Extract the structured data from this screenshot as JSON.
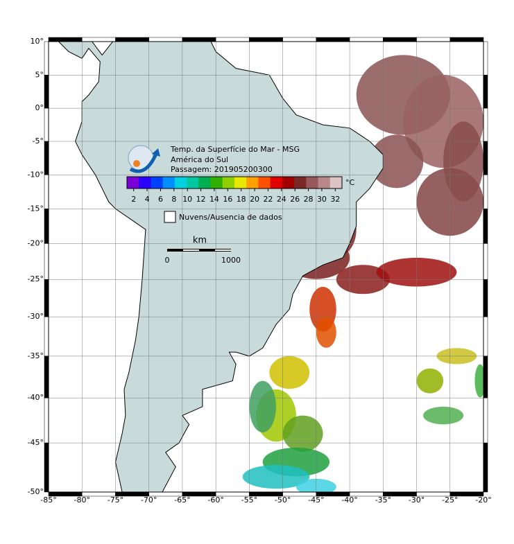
{
  "map": {
    "title_lines": [
      "Temp. da Superfície do Mar - MSG",
      "América do Sul",
      "Passagem: 201905200300"
    ],
    "xlim": [
      -85,
      -20
    ],
    "ylim": [
      -50,
      10
    ],
    "xticks": [
      {
        "value": -85,
        "label": "-85°"
      },
      {
        "value": -80,
        "label": "-80°"
      },
      {
        "value": -75,
        "label": "-75°"
      },
      {
        "value": -70,
        "label": "-70°"
      },
      {
        "value": -65,
        "label": "-65°"
      },
      {
        "value": -60,
        "label": "-60°"
      },
      {
        "value": -55,
        "label": "-55°"
      },
      {
        "value": -50,
        "label": "-50°"
      },
      {
        "value": -45,
        "label": "-45°"
      },
      {
        "value": -40,
        "label": "-40°"
      },
      {
        "value": -35,
        "label": "-35°"
      },
      {
        "value": -30,
        "label": "-30°"
      },
      {
        "value": -25,
        "label": "-25°"
      },
      {
        "value": -20,
        "label": "-20°"
      }
    ],
    "yticks": [
      {
        "value": 10,
        "label": "10°"
      },
      {
        "value": 5,
        "label": "5°"
      },
      {
        "value": 0,
        "label": "0°"
      },
      {
        "value": -5,
        "label": "-5°"
      },
      {
        "value": -10,
        "label": "-10°"
      },
      {
        "value": -15,
        "label": "-15°"
      },
      {
        "value": -20,
        "label": "-20°"
      },
      {
        "value": -25,
        "label": "-25°"
      },
      {
        "value": -30,
        "label": "-30°"
      },
      {
        "value": -35,
        "label": "-35°"
      },
      {
        "value": -40,
        "label": "-40°"
      },
      {
        "value": -45,
        "label": "-45°"
      },
      {
        "value": -50,
        "label": "-50°"
      }
    ],
    "grid": true,
    "colorbar": {
      "lim": [
        1,
        33
      ],
      "ticks": [
        2,
        4,
        6,
        8,
        10,
        12,
        14,
        16,
        18,
        20,
        22,
        24,
        26,
        28,
        30,
        32
      ],
      "unit": "°C",
      "colors": [
        "#7a00d8",
        "#2a00ff",
        "#0040ff",
        "#0090ff",
        "#00d0e0",
        "#00c8a0",
        "#00b050",
        "#30b000",
        "#90d000",
        "#e8e800",
        "#ffa000",
        "#ff5000",
        "#e00000",
        "#a00000",
        "#7a2828",
        "#965858",
        "#b88888",
        "#dcc4c4"
      ]
    },
    "legend": "Nuvens/Ausencia de dados",
    "scale": {
      "unit": "km",
      "labels": [
        0,
        1000
      ]
    }
  }
}
